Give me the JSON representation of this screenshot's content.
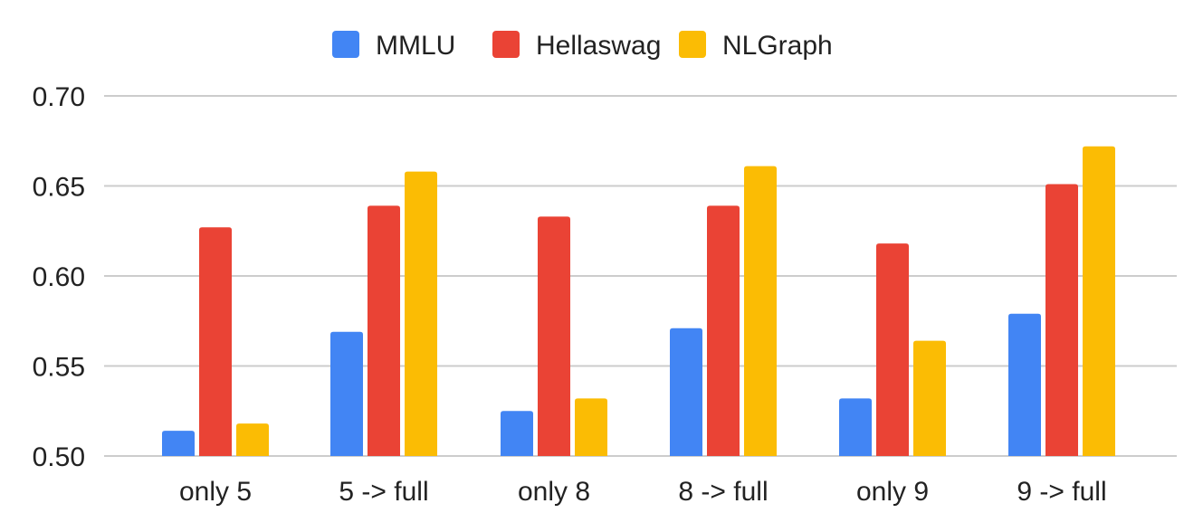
{
  "chart_data": {
    "type": "bar",
    "categories": [
      "only 5",
      "5 -> full",
      "only 8",
      "8 -> full",
      "only 9",
      "9 -> full"
    ],
    "series": [
      {
        "name": "MMLU",
        "color": "#4285F4",
        "values": [
          0.514,
          0.569,
          0.525,
          0.571,
          0.532,
          0.579
        ]
      },
      {
        "name": "Hellaswag",
        "color": "#EA4335",
        "values": [
          0.627,
          0.639,
          0.633,
          0.639,
          0.618,
          0.651
        ]
      },
      {
        "name": "NLGraph",
        "color": "#FBBC04",
        "values": [
          0.518,
          0.658,
          0.532,
          0.661,
          0.564,
          0.672
        ]
      }
    ],
    "y_ticks": [
      "0.50",
      "0.55",
      "0.60",
      "0.65",
      "0.70"
    ],
    "ylim": [
      0.5,
      0.7
    ],
    "grid": true,
    "legend_position": "top-center",
    "title": "",
    "xlabel": "",
    "ylabel": ""
  }
}
